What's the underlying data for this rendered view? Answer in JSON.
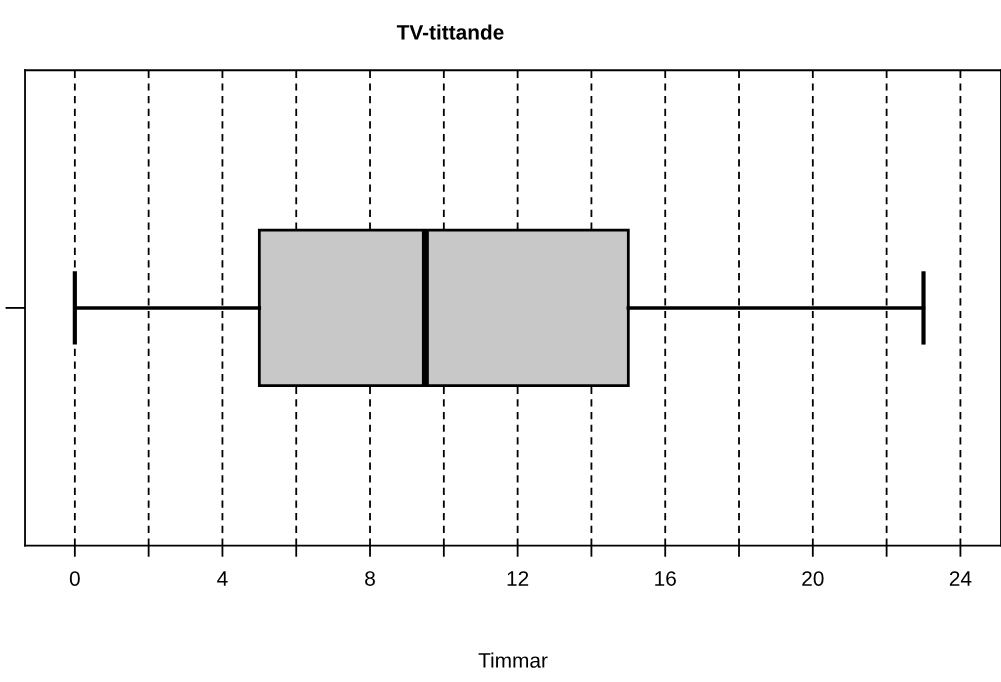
{
  "chart_data": {
    "type": "box",
    "title": "TV-tittande",
    "xlabel": "Timmar",
    "orientation": "horizontal",
    "categories": [
      null
    ],
    "boxes": [
      {
        "low": 0,
        "q1": 5,
        "median": 9.5,
        "q3": 15,
        "high": 23
      }
    ],
    "color": "#c8c8c8",
    "xlim": [
      -1.35,
      25.1
    ],
    "xticks": [
      0,
      {
        "value": 2,
        "label": null
      },
      4,
      {
        "value": 6,
        "label": null
      },
      8,
      {
        "value": 10,
        "label": null
      },
      12,
      {
        "value": 14,
        "label": null
      },
      16,
      {
        "value": 18,
        "label": null
      },
      20,
      {
        "value": 22,
        "label": null
      },
      24
    ],
    "grid": "x"
  }
}
